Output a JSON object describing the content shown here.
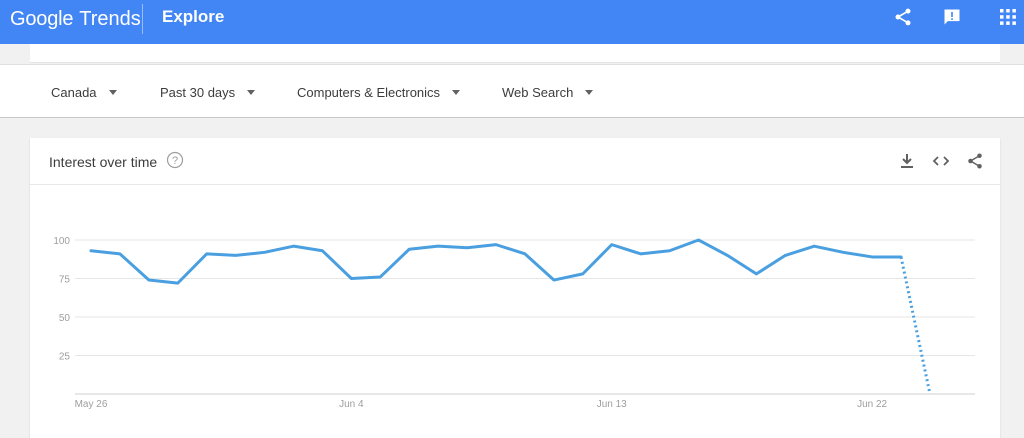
{
  "header": {
    "brand": "Google",
    "product": "Trends",
    "title": "Explore",
    "icons": [
      "share-icon",
      "feedback-icon",
      "apps-icon"
    ]
  },
  "filters": [
    {
      "label": "Canada"
    },
    {
      "label": "Past 30 days"
    },
    {
      "label": "Computers & Electronics"
    },
    {
      "label": "Web Search"
    }
  ],
  "card": {
    "title": "Interest over time",
    "icons": [
      "help-icon",
      "download-icon",
      "embed-icon",
      "share-icon"
    ]
  },
  "colors": {
    "header_bg": "#4285f4",
    "line": "#4a9fe0",
    "grid": "#e6e6e6"
  },
  "chart_data": {
    "type": "line",
    "ylim": [
      0,
      100
    ],
    "y_ticks": [
      25,
      50,
      75,
      100
    ],
    "x_tick_labels": [
      {
        "label": "May 26",
        "index": 0
      },
      {
        "label": "Jun 4",
        "index": 9
      },
      {
        "label": "Jun 13",
        "index": 18
      },
      {
        "label": "Jun 22",
        "index": 27
      }
    ],
    "values": [
      93,
      91,
      74,
      72,
      91,
      90,
      92,
      96,
      93,
      75,
      76,
      94,
      96,
      95,
      97,
      91,
      74,
      78,
      97,
      91,
      93,
      100,
      90,
      78,
      90,
      96,
      92,
      89,
      89,
      0
    ],
    "partial_from_index": 28,
    "grid": true
  }
}
